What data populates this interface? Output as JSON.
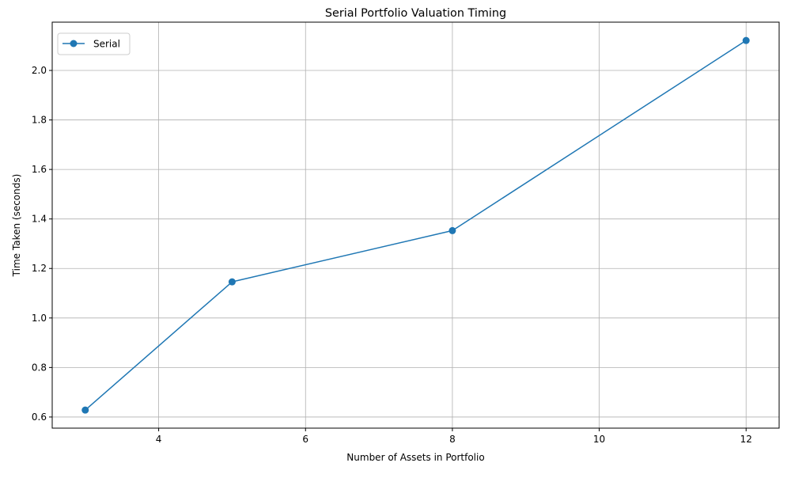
{
  "chart_data": {
    "type": "line",
    "title": "Serial Portfolio Valuation Timing",
    "xlabel": "Number of Assets in Portfolio",
    "ylabel": "Time Taken (seconds)",
    "xlim": [
      2.55,
      12.45
    ],
    "ylim": [
      0.555,
      2.195
    ],
    "x_ticks": [
      4,
      6,
      8,
      10,
      12
    ],
    "y_ticks": [
      0.6,
      0.8,
      1.0,
      1.2,
      1.4,
      1.6,
      1.8,
      2.0
    ],
    "x_tick_labels": [
      "4",
      "6",
      "8",
      "10",
      "12"
    ],
    "y_tick_labels": [
      "0.6",
      "0.8",
      "1.0",
      "1.2",
      "1.4",
      "1.6",
      "1.8",
      "2.0"
    ],
    "grid": true,
    "legend_position": "top-left",
    "series": [
      {
        "name": "Serial",
        "color": "#1f77b4",
        "marker": "circle",
        "x": [
          3,
          5,
          8,
          12
        ],
        "y": [
          0.628,
          1.146,
          1.353,
          2.121
        ]
      }
    ]
  }
}
